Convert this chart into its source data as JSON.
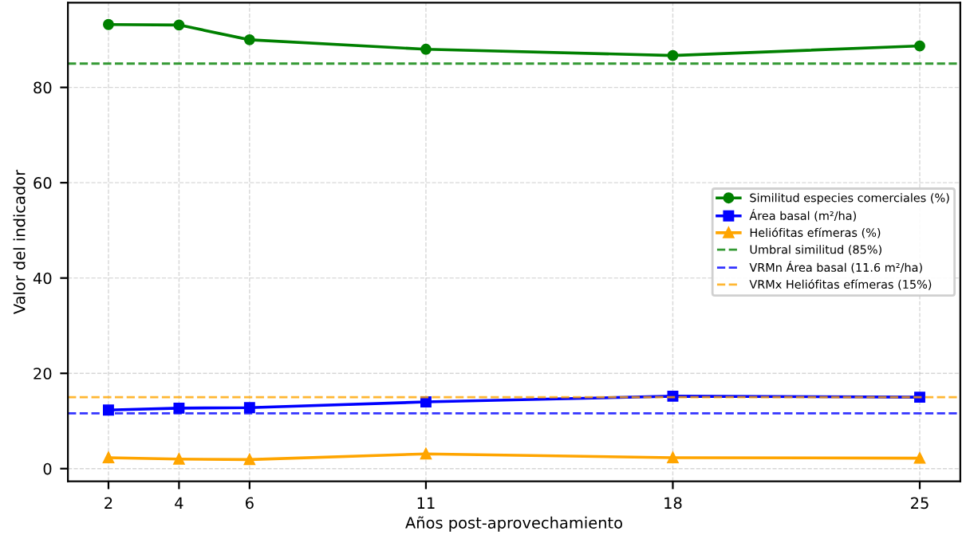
{
  "chart_data": {
    "type": "line",
    "xlabel": "Años post-aprovechamiento",
    "ylabel": "Valor del indicador",
    "x": [
      2,
      4,
      6,
      11,
      18,
      25
    ],
    "series": [
      {
        "name": "Similitud especies comerciales (%)",
        "color": "#008000",
        "marker": "circle",
        "values": [
          93.2,
          93.1,
          90,
          88,
          86.7,
          88.7
        ]
      },
      {
        "name": "Área basal (m²/ha)",
        "color": "#0000ff",
        "marker": "square",
        "values": [
          12.3,
          12.7,
          12.8,
          14,
          15.2,
          15
        ]
      },
      {
        "name": "Heliófitas efímeras (%)",
        "color": "#ffa500",
        "marker": "triangle",
        "values": [
          2.3,
          2,
          1.9,
          3.1,
          2.3,
          2.2
        ]
      }
    ],
    "ref_lines": [
      {
        "axis": "y",
        "value": 85,
        "label": "Umbral similitud (85%)",
        "color": "#008000",
        "line_style": "dashed"
      },
      {
        "axis": "y",
        "value": 11.6,
        "label": "VRMn Área basal (11.6 m²/ha)",
        "color": "#0000ff",
        "line_style": "dashed"
      },
      {
        "axis": "y",
        "value": 15,
        "label": "VRMx Heliófitas efímeras (15%)",
        "color": "#ffa500",
        "line_style": "dashed"
      }
    ],
    "xlim": [
      0.85,
      26.15
    ],
    "ylim": [
      -2.67,
      97.77
    ],
    "xticks": [
      2,
      4,
      6,
      11,
      18,
      25
    ],
    "yticks": [
      0,
      20,
      40,
      60,
      80
    ],
    "grid": true,
    "legend": "right",
    "line_style": "solid"
  }
}
